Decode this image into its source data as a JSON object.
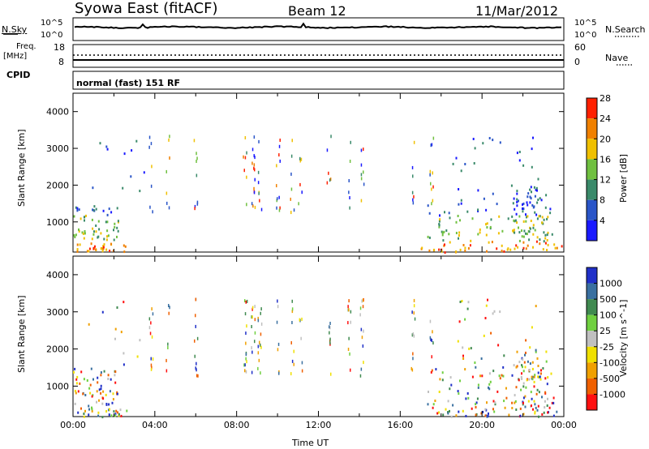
{
  "header": {
    "station": "Syowa East (fitACF)",
    "beam": "Beam 12",
    "date": "11/Mar/2012"
  },
  "noise_panel": {
    "left_label": "N.Sky",
    "left_top": "10^5",
    "left_bottom": "10^0",
    "right_top": "10^5",
    "right_bottom": "10^0",
    "right_label": "N.Search"
  },
  "freq_panel": {
    "left_label_1": "Freq.",
    "left_label_2": "[MHz]",
    "left_top": "18",
    "left_bottom": "8",
    "right_top": "60",
    "right_bottom": "0",
    "right_label": "Nave"
  },
  "cpid": {
    "label": "CPID",
    "text": "normal (fast) 151 RF"
  },
  "chart_data": [
    {
      "type": "heatmap",
      "title": "",
      "ylabel": "Slant Range [km]",
      "xlabel": "",
      "ylim": [
        180,
        4500
      ],
      "y_ticks": [
        "1000",
        "2000",
        "3000",
        "4000"
      ],
      "colorbar_label": "Power [dB]",
      "colorbar_ticks": [
        "4",
        "8",
        "12",
        "16",
        "20",
        "24",
        "28"
      ],
      "colorbar_colors": [
        "#1a1aff",
        "#2a55c8",
        "#3a8a6a",
        "#70c040",
        "#f0c000",
        "#f08000",
        "#ff2000"
      ]
    },
    {
      "type": "heatmap",
      "title": "",
      "ylabel": "Slant Range [km]",
      "xlabel": "Time UT",
      "ylim": [
        180,
        4500
      ],
      "y_ticks": [
        "1000",
        "2000",
        "3000",
        "4000"
      ],
      "x_ticks": [
        "00:00",
        "04:00",
        "08:00",
        "12:00",
        "16:00",
        "20:00",
        "00:00"
      ],
      "colorbar_label": "Velocity [m s^-1]",
      "colorbar_ticks": [
        "1000",
        "500",
        "100",
        "25",
        "-25",
        "-100",
        "-500",
        "-1000"
      ],
      "colorbar_colors": [
        "#2030c8",
        "#3a70a0",
        "#408a50",
        "#70d040",
        "#c0c0c0",
        "#f0e000",
        "#f0a000",
        "#f06000",
        "#ff1010"
      ]
    }
  ]
}
